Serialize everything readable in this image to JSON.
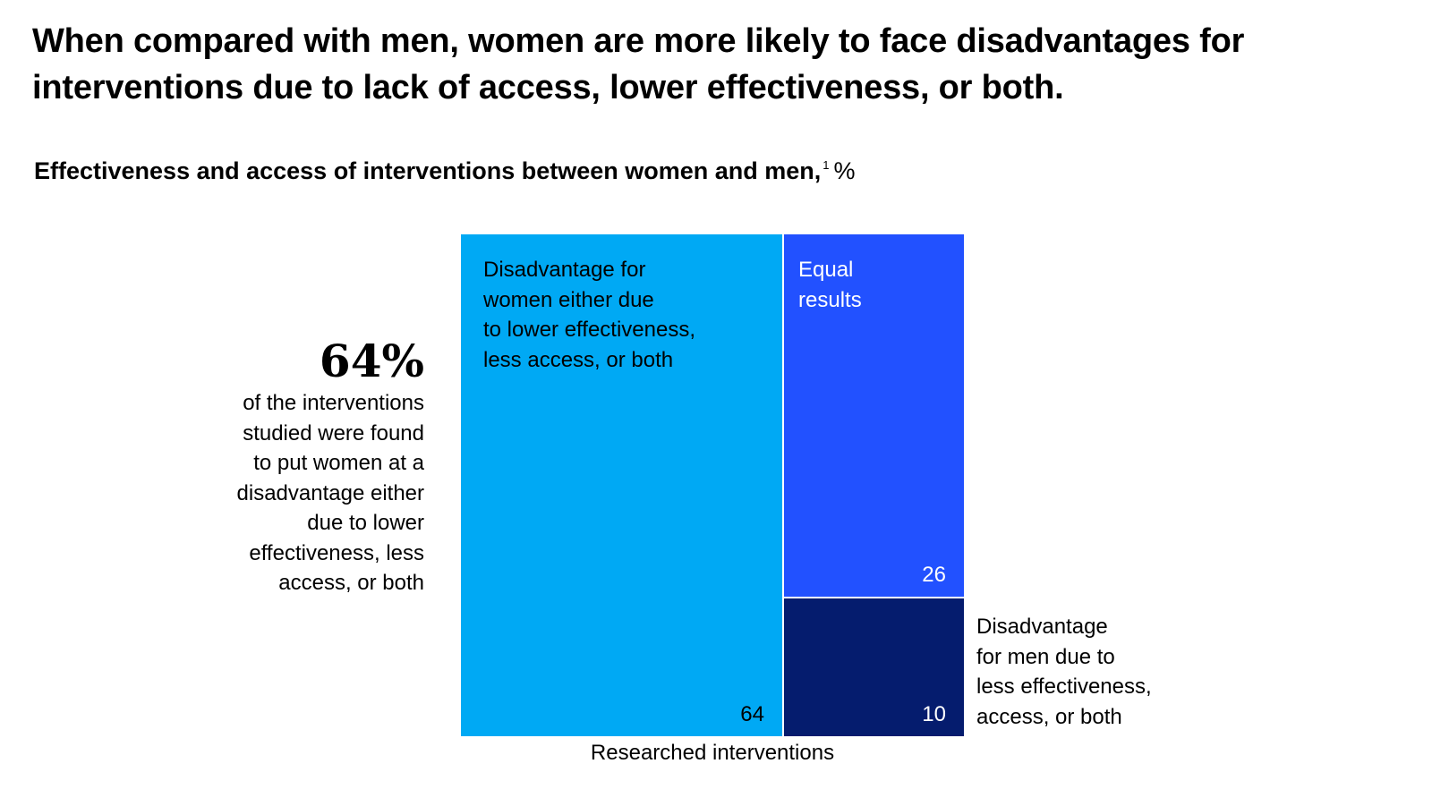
{
  "title_lines": [
    "When compared with men, women are more likely to face disadvantages for",
    "interventions due to lack of access, lower effectiveness, or both."
  ],
  "subtitle": "Effectiveness and access of interventions between women and men,",
  "subtitle_footnote": "1",
  "subtitle_unit": "%",
  "callout": {
    "number": "64%",
    "text_lines": [
      "of the interventions",
      "studied were found",
      "to put women at a",
      "disadvantage either",
      "due to lower",
      "effectiveness, less",
      "access, or both"
    ]
  },
  "chart_data": {
    "type": "mekko",
    "xlabel": "Researched interventions",
    "segments": [
      {
        "key": "women",
        "value": 64,
        "value_label": "64",
        "label_lines": [
          "Disadvantage for",
          "women either due",
          "to lower effectiveness,",
          "less access, or both"
        ],
        "color": "#00A9F4"
      },
      {
        "key": "equal",
        "value": 26,
        "value_label": "26",
        "label_lines": [
          "Equal",
          "results"
        ],
        "color": "#2251FF"
      },
      {
        "key": "men",
        "value": 10,
        "value_label": "10",
        "label_lines": [
          "Disadvantage",
          "for men due to",
          "less effectiveness,",
          "access, or both"
        ],
        "color": "#051C6E"
      }
    ],
    "colors": {
      "women": "#00A9F4",
      "equal": "#2251FF",
      "men": "#051C6E",
      "text_on_dark": "#FFFFFF",
      "text_on_light": "#000000"
    }
  }
}
